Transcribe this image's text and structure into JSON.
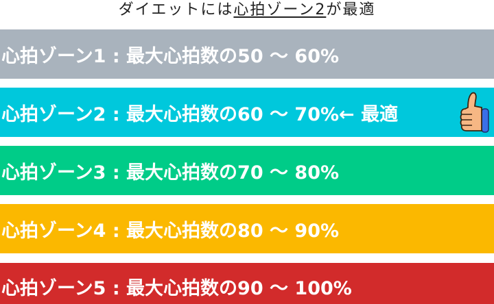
{
  "title": {
    "prefix": "ダイエットには",
    "highlight": "心拍ゾーン2",
    "suffix": "が最適"
  },
  "zones": [
    {
      "label": "心拍ゾーン1 : 最大心拍数の50 〜 60%",
      "color": "#a9b3bd"
    },
    {
      "label": "心拍ゾーン2 : 最大心拍数の60 〜 70%",
      "note": " ← 最適",
      "color": "#00c8dc",
      "icon": "thumbs-up-icon"
    },
    {
      "label": "心拍ゾーン3 : 最大心拍数の70 〜 80%",
      "color": "#00cc88"
    },
    {
      "label": "心拍ゾーン4 : 最大心拍数の80 〜 90%",
      "color": "#fbb800"
    },
    {
      "label": "心拍ゾーン5 : 最大心拍数の90 〜 100%",
      "color": "#d22b2b"
    }
  ]
}
